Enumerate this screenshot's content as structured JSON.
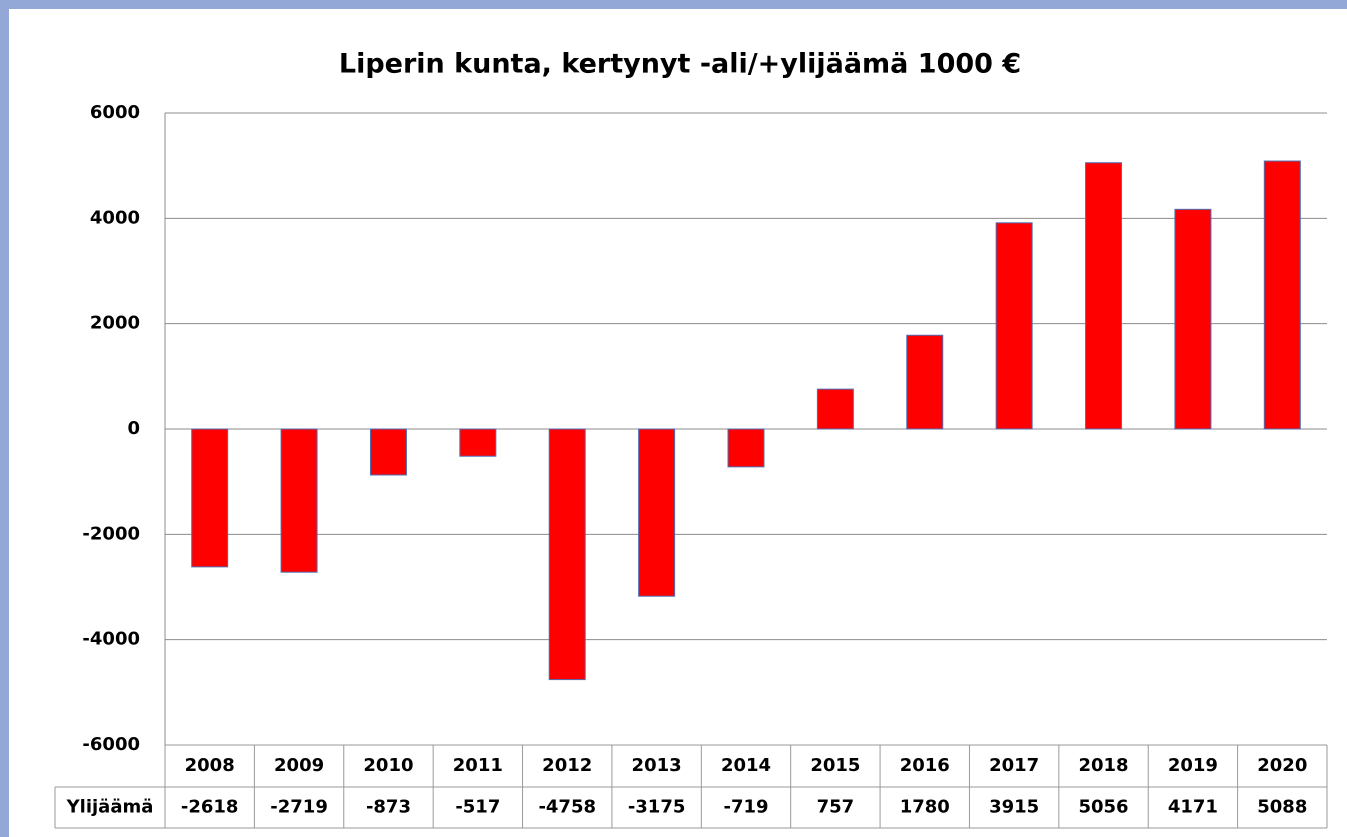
{
  "chart_data": {
    "type": "bar",
    "title": "Liperin kunta, kertynyt -ali/+ylijäämä  1000 €",
    "categories": [
      "2008",
      "2009",
      "2010",
      "2011",
      "2012",
      "2013",
      "2014",
      "2015",
      "2016",
      "2017",
      "2018",
      "2019",
      "2020"
    ],
    "series": [
      {
        "name": "Ylijäämä",
        "color": "#ff0000",
        "values": [
          -2618,
          -2719,
          -873,
          -517,
          -4758,
          -3175,
          -719,
          757,
          1780,
          3915,
          5056,
          4171,
          5088
        ]
      }
    ],
    "ylim": [
      -6000,
      6000
    ],
    "yticks": [
      -6000,
      -4000,
      -2000,
      0,
      2000,
      4000,
      6000
    ],
    "grid": true,
    "data_table": true
  }
}
